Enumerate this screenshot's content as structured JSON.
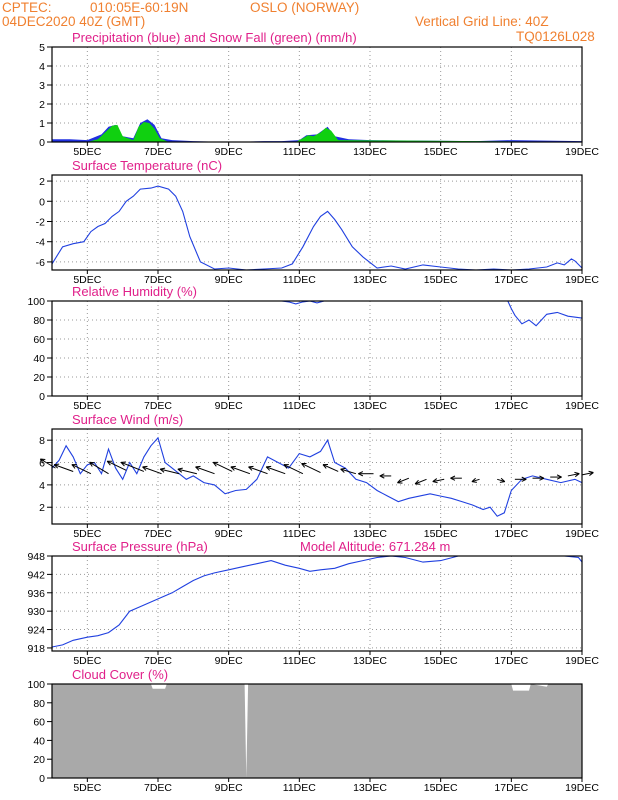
{
  "header": {
    "org": "CPTEC:",
    "coords": "010:05E-60:19N",
    "location": "OSLO (NORWAY)",
    "date": "04DEC2020 40Z (GMT)",
    "grid_note": "Vertical Grid Line: 40Z",
    "model": "TQ0126L028"
  },
  "colors": {
    "header": "#f08030",
    "title": "#e0208a",
    "precip": "#2030e0",
    "snow": "#10d010",
    "line": "#2040e0",
    "cloud": "#a9a9a9"
  },
  "chart_data": [
    {
      "type": "area",
      "title": "Precipitation (blue) and Snow Fall (green) (mm/h)",
      "x_ticks": [
        "5DEC",
        "7DEC",
        "9DEC",
        "11DEC",
        "13DEC",
        "15DEC",
        "17DEC",
        "19DEC"
      ],
      "x_tick_positions": [
        5,
        7,
        9,
        11,
        13,
        15,
        17,
        19
      ],
      "xlim": [
        4.0,
        19.0
      ],
      "ylim": [
        0,
        5
      ],
      "y_ticks": [
        0,
        1,
        2,
        3,
        4,
        5
      ],
      "grid": true,
      "series": [
        {
          "name": "Precipitation",
          "x": [
            4.0,
            4.5,
            5.0,
            5.4,
            5.6,
            5.8,
            6.0,
            6.3,
            6.5,
            6.7,
            6.9,
            7.1,
            7.4,
            8.0,
            9.0,
            10.0,
            10.5,
            11.0,
            11.2,
            11.5,
            11.8,
            12.0,
            12.4,
            13.0,
            16.0,
            17.0,
            19.0
          ],
          "y": [
            0.15,
            0.15,
            0.1,
            0.4,
            0.8,
            0.9,
            0.3,
            0.2,
            1.0,
            1.2,
            0.9,
            0.2,
            0.1,
            0.05,
            0.0,
            0.05,
            0.05,
            0.1,
            0.35,
            0.4,
            0.8,
            0.3,
            0.15,
            0.1,
            0.05,
            0.1,
            0.05
          ]
        },
        {
          "name": "Snow Fall",
          "x": [
            4.0,
            5.0,
            5.3,
            5.5,
            5.7,
            5.85,
            6.0,
            6.3,
            6.45,
            6.6,
            6.75,
            6.9,
            7.05,
            7.3,
            10.9,
            11.1,
            11.25,
            11.4,
            11.6,
            11.75,
            11.9,
            12.1,
            19.0
          ],
          "y": [
            0.0,
            0.0,
            0.15,
            0.5,
            0.85,
            0.9,
            0.3,
            0.1,
            0.8,
            1.05,
            1.0,
            0.7,
            0.2,
            0.0,
            0.0,
            0.2,
            0.35,
            0.3,
            0.5,
            0.75,
            0.6,
            0.1,
            0.0
          ]
        }
      ]
    },
    {
      "type": "line",
      "title": "Surface Temperature (nC)",
      "x_ticks": [
        "5DEC",
        "7DEC",
        "9DEC",
        "11DEC",
        "13DEC",
        "15DEC",
        "17DEC",
        "19DEC"
      ],
      "x_tick_positions": [
        5,
        7,
        9,
        11,
        13,
        15,
        17,
        19
      ],
      "xlim": [
        4.0,
        19.0
      ],
      "ylim": [
        -6.8,
        2.6
      ],
      "y_ticks": [
        -6,
        -4,
        -2,
        0,
        2
      ],
      "grid": true,
      "series": [
        {
          "name": "",
          "x": [
            4.0,
            4.3,
            4.6,
            4.9,
            5.1,
            5.3,
            5.5,
            5.7,
            5.9,
            6.1,
            6.3,
            6.5,
            6.8,
            7.0,
            7.3,
            7.5,
            7.7,
            7.9,
            8.2,
            8.6,
            9.0,
            9.5,
            10.0,
            10.5,
            10.8,
            11.1,
            11.4,
            11.6,
            11.8,
            12.0,
            12.2,
            12.5,
            12.8,
            13.2,
            13.6,
            14.0,
            14.5,
            15.0,
            15.5,
            16.0,
            16.5,
            17.0,
            17.5,
            18.0,
            18.3,
            18.5,
            18.7,
            18.8,
            19.0
          ],
          "y": [
            -6.2,
            -4.5,
            -4.2,
            -4.0,
            -3.0,
            -2.5,
            -2.2,
            -1.5,
            -1.0,
            0.0,
            0.5,
            1.2,
            1.3,
            1.5,
            1.2,
            0.5,
            -1.0,
            -3.5,
            -6.0,
            -6.7,
            -6.6,
            -6.8,
            -6.7,
            -6.6,
            -6.2,
            -4.5,
            -2.5,
            -1.5,
            -1.0,
            -1.8,
            -2.8,
            -4.5,
            -5.5,
            -6.6,
            -6.4,
            -6.7,
            -6.3,
            -6.5,
            -6.7,
            -6.8,
            -6.7,
            -6.8,
            -6.7,
            -6.5,
            -6.1,
            -6.3,
            -5.7,
            -5.9,
            -6.6
          ]
        }
      ]
    },
    {
      "type": "line",
      "title": "Relative Humidity (%)",
      "x_ticks": [
        "5DEC",
        "7DEC",
        "9DEC",
        "11DEC",
        "13DEC",
        "15DEC",
        "17DEC",
        "19DEC"
      ],
      "x_tick_positions": [
        5,
        7,
        9,
        11,
        13,
        15,
        17,
        19
      ],
      "xlim": [
        4.0,
        19.0
      ],
      "ylim": [
        0,
        100
      ],
      "y_ticks": [
        0,
        20,
        40,
        60,
        80,
        100
      ],
      "grid": true,
      "series": [
        {
          "name": "",
          "x": [
            4.0,
            10.5,
            10.7,
            10.9,
            11.1,
            11.3,
            11.5,
            11.7,
            12.0,
            16.9,
            17.0,
            17.1,
            17.3,
            17.5,
            17.7,
            18.0,
            18.3,
            18.6,
            19.0
          ],
          "y": [
            100,
            100,
            99,
            97,
            99,
            100,
            98,
            100,
            100,
            100,
            92,
            85,
            76,
            80,
            74,
            86,
            88,
            84,
            82
          ]
        }
      ]
    },
    {
      "type": "line",
      "title": "Surface Wind (m/s)",
      "x_ticks": [
        "5DEC",
        "7DEC",
        "9DEC",
        "11DEC",
        "13DEC",
        "15DEC",
        "17DEC",
        "19DEC"
      ],
      "x_tick_positions": [
        5,
        7,
        9,
        11,
        13,
        15,
        17,
        19
      ],
      "xlim": [
        4.0,
        19.0
      ],
      "ylim": [
        0.5,
        9.0
      ],
      "y_ticks": [
        2,
        4,
        6,
        8
      ],
      "grid": true,
      "series": [
        {
          "name": "",
          "x": [
            4.0,
            4.2,
            4.4,
            4.6,
            4.8,
            5.0,
            5.2,
            5.4,
            5.6,
            5.8,
            6.0,
            6.2,
            6.4,
            6.6,
            6.8,
            7.0,
            7.2,
            7.4,
            7.6,
            7.8,
            8.0,
            8.3,
            8.6,
            8.9,
            9.2,
            9.5,
            9.8,
            10.1,
            10.4,
            10.7,
            11.0,
            11.3,
            11.6,
            11.8,
            12.0,
            12.3,
            12.6,
            12.9,
            13.2,
            13.5,
            13.8,
            14.1,
            14.4,
            14.7,
            15.0,
            15.3,
            15.6,
            15.9,
            16.2,
            16.4,
            16.6,
            16.8,
            17.0,
            17.3,
            17.6,
            18.0,
            18.4,
            18.8,
            19.0
          ],
          "y": [
            5.5,
            6.2,
            7.5,
            6.5,
            5.0,
            5.8,
            6.0,
            5.0,
            7.2,
            5.5,
            4.5,
            6.0,
            5.0,
            6.5,
            7.5,
            8.2,
            6.0,
            5.5,
            5.0,
            4.5,
            4.8,
            4.2,
            4.0,
            3.2,
            3.5,
            3.6,
            4.5,
            6.5,
            6.0,
            5.5,
            6.8,
            6.5,
            7.0,
            8.0,
            6.0,
            5.5,
            4.5,
            4.2,
            3.5,
            3.0,
            2.5,
            2.8,
            3.0,
            3.2,
            3.0,
            2.8,
            2.5,
            2.2,
            1.8,
            2.0,
            1.2,
            1.5,
            3.5,
            4.5,
            4.8,
            4.5,
            4.2,
            4.5,
            4.2
          ]
        }
      ],
      "vectors": {
        "x": [
          4.1,
          4.6,
          5.1,
          5.6,
          6.1,
          6.6,
          7.1,
          7.6,
          8.1,
          8.6,
          9.1,
          9.6,
          10.1,
          10.6,
          11.1,
          11.6,
          12.1,
          12.6,
          13.1,
          13.6,
          14.1,
          14.6,
          15.1,
          15.6,
          16.1,
          16.6,
          17.1,
          17.6,
          18.1,
          18.6,
          19.0
        ],
        "y": [
          5.5,
          5.2,
          5.0,
          5.0,
          5.3,
          5.2,
          5.0,
          5.0,
          5.0,
          5.0,
          5.2,
          5.0,
          5.0,
          5.0,
          5.0,
          5.1,
          5.2,
          5.0,
          5.0,
          4.8,
          4.6,
          4.5,
          4.5,
          4.6,
          4.5,
          4.5,
          4.5,
          4.6,
          4.7,
          4.8,
          4.9
        ],
        "u": [
          -4,
          -5,
          -5,
          -5,
          -5,
          -6,
          -5,
          -5,
          -5,
          -5,
          -5,
          -5,
          -5,
          -5,
          -5,
          -5,
          -4,
          -4,
          -4,
          -3,
          -3,
          -3,
          -3,
          -3,
          -2,
          2,
          3,
          3,
          3,
          3,
          3
        ],
        "v": [
          4,
          3,
          4,
          5,
          4,
          4,
          3,
          2,
          2,
          3,
          4,
          3,
          3,
          3,
          4,
          4,
          3,
          2,
          0,
          0,
          -2,
          -2,
          -1,
          0,
          -1,
          -1,
          0,
          0,
          0,
          1,
          1
        ]
      }
    },
    {
      "type": "line",
      "title": "Surface Pressure (hPa)",
      "annotation": "Model Altitude: 671.284 m",
      "x_ticks": [
        "5DEC",
        "7DEC",
        "9DEC",
        "11DEC",
        "13DEC",
        "15DEC",
        "17DEC",
        "19DEC"
      ],
      "x_tick_positions": [
        5,
        7,
        9,
        11,
        13,
        15,
        17,
        19
      ],
      "xlim": [
        4.0,
        19.0
      ],
      "ylim": [
        917,
        948
      ],
      "y_ticks": [
        918,
        924,
        930,
        936,
        942,
        948
      ],
      "grid": true,
      "series": [
        {
          "name": "",
          "x": [
            4.0,
            4.3,
            4.6,
            5.0,
            5.3,
            5.6,
            5.9,
            6.2,
            6.5,
            6.8,
            7.1,
            7.4,
            7.7,
            8.0,
            8.3,
            8.6,
            9.0,
            9.4,
            9.8,
            10.2,
            10.6,
            11.0,
            11.3,
            11.6,
            12.0,
            12.4,
            12.8,
            13.2,
            13.6,
            14.0,
            14.5,
            15.0,
            15.5,
            16.0,
            16.5,
            17.0,
            17.5,
            18.0,
            18.5,
            18.9,
            19.0
          ],
          "y": [
            918.3,
            919.0,
            920.5,
            921.5,
            922.0,
            923.0,
            925.5,
            930.0,
            931.5,
            933.0,
            934.5,
            936.0,
            938.0,
            940.0,
            941.5,
            942.5,
            943.5,
            944.5,
            945.5,
            946.5,
            945.0,
            944.0,
            943.0,
            943.5,
            944.0,
            945.5,
            946.5,
            947.5,
            948.5,
            947.5,
            946.0,
            946.5,
            948.0,
            948.5,
            949.0,
            949.0,
            949.0,
            949.0,
            949.0,
            947.5,
            946.0
          ]
        }
      ]
    },
    {
      "type": "area",
      "title": "Cloud Cover (%)",
      "x_ticks": [
        "5DEC",
        "7DEC",
        "9DEC",
        "11DEC",
        "13DEC",
        "15DEC",
        "17DEC",
        "19DEC"
      ],
      "x_tick_positions": [
        5,
        7,
        9,
        11,
        13,
        15,
        17,
        19
      ],
      "xlim": [
        4.0,
        19.0
      ],
      "ylim": [
        0,
        100
      ],
      "y_ticks": [
        0,
        20,
        40,
        60,
        80,
        100
      ],
      "grid": false,
      "series": [
        {
          "name": "",
          "x": [
            4.0,
            6.8,
            6.85,
            7.2,
            7.25,
            9.45,
            9.5,
            9.55,
            17.0,
            17.05,
            17.5,
            17.55,
            18.0,
            18.05,
            19.0
          ],
          "y": [
            100,
            100,
            95,
            95,
            100,
            100,
            0,
            100,
            100,
            93,
            93,
            100,
            97,
            100,
            100
          ]
        }
      ]
    }
  ]
}
